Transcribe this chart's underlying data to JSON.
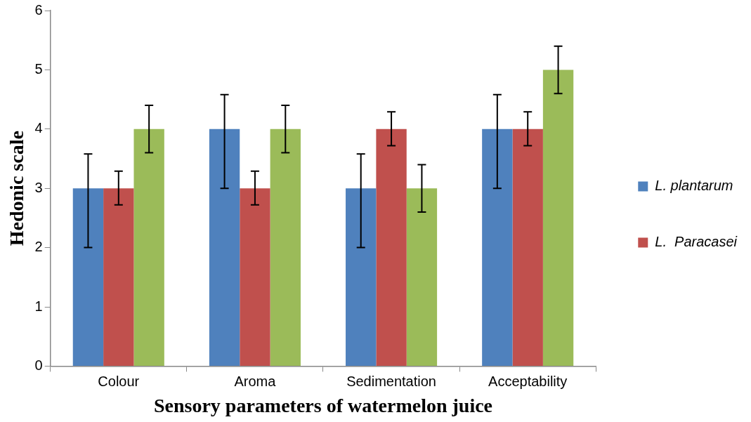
{
  "chart_data": {
    "type": "bar",
    "xlabel": "Sensory parameters of watermelon juice",
    "ylabel": "Hedonic scale",
    "categories": [
      "Colour",
      "Aroma",
      "Sedimentation",
      "Acceptability"
    ],
    "series": [
      {
        "name": "L. plantarum",
        "color": "#4f81bd",
        "values": [
          3,
          4,
          3,
          4
        ],
        "errors": [
          [
            2.0,
            3.58
          ],
          [
            3.0,
            4.58
          ],
          [
            2.0,
            3.58
          ],
          [
            3.0,
            4.58
          ]
        ]
      },
      {
        "name": "L.  Paracasei",
        "color": "#c0504d",
        "values": [
          3,
          3,
          4,
          4
        ],
        "errors": [
          [
            2.72,
            3.29
          ],
          [
            2.72,
            3.29
          ],
          [
            3.72,
            4.29
          ],
          [
            3.72,
            4.29
          ]
        ]
      },
      {
        "color": "#9bbb59",
        "values": [
          4,
          4,
          3,
          5
        ],
        "errors": [
          [
            3.6,
            4.4
          ],
          [
            3.6,
            4.4
          ],
          [
            2.6,
            3.4
          ],
          [
            4.6,
            5.4
          ]
        ]
      }
    ],
    "ylim": [
      0,
      6
    ],
    "yticks": [
      0,
      1,
      2,
      3,
      4,
      5,
      6
    ],
    "grid": false,
    "legend": "right"
  }
}
